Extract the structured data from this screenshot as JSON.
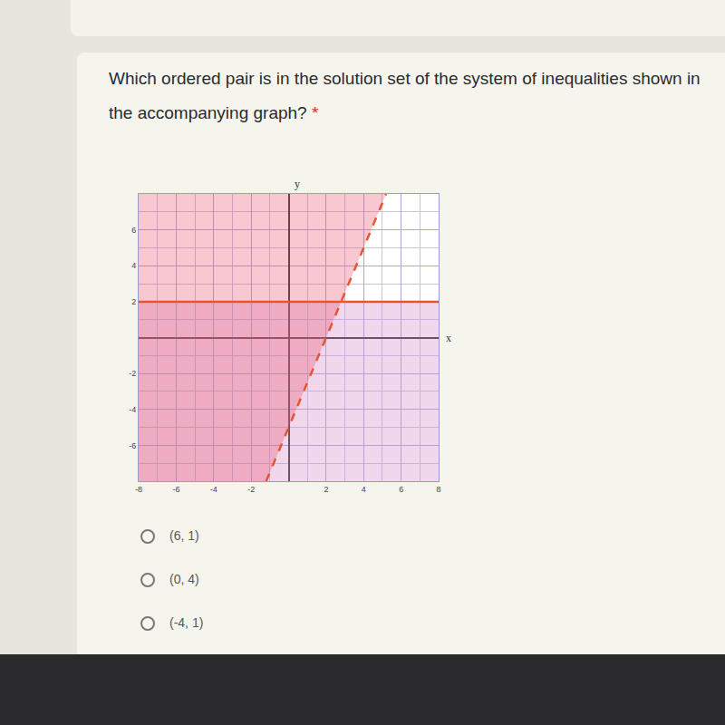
{
  "question": "Which ordered pair is in the solution set of the system of inequalities shown in the accompanying graph?",
  "required_mark": "*",
  "options": [
    "(6, 1)",
    "(0, 4)",
    "(-4, 1)"
  ],
  "chart_data": {
    "type": "line",
    "xlabel": "x",
    "ylabel": "y",
    "series": [
      {
        "x": [
          -8,
          8
        ],
        "values": [
          2,
          2
        ],
        "color": "#e8542f",
        "line_style": "solid"
      },
      {
        "x": [
          -1.2,
          5.2
        ],
        "values": [
          -8,
          8
        ],
        "color": "#e8542f",
        "line_style": "dashed"
      }
    ],
    "xlim": [
      -8,
      8
    ],
    "ylim": [
      -8,
      8
    ],
    "xticks": [
      -8,
      -6,
      -4,
      -2,
      2,
      4,
      6,
      8
    ],
    "yticks": [
      -6,
      -4,
      -2,
      2,
      4,
      6
    ],
    "grid": true
  }
}
